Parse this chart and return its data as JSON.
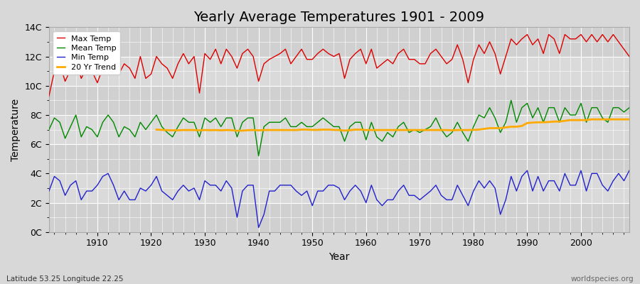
{
  "title": "Yearly Average Temperatures 1901 - 2009",
  "xlabel": "Year",
  "ylabel": "Temperature",
  "footnote_left": "Latitude 53.25 Longitude 22.25",
  "footnote_right": "worldspecies.org",
  "legend": [
    "Max Temp",
    "Mean Temp",
    "Min Temp",
    "20 Yr Trend"
  ],
  "colors": {
    "max": "#dd0000",
    "mean": "#008800",
    "min": "#2222cc",
    "trend": "#ffaa00"
  },
  "years": [
    1901,
    1902,
    1903,
    1904,
    1905,
    1906,
    1907,
    1908,
    1909,
    1910,
    1911,
    1912,
    1913,
    1914,
    1915,
    1916,
    1917,
    1918,
    1919,
    1920,
    1921,
    1922,
    1923,
    1924,
    1925,
    1926,
    1927,
    1928,
    1929,
    1930,
    1931,
    1932,
    1933,
    1934,
    1935,
    1936,
    1937,
    1938,
    1939,
    1940,
    1941,
    1942,
    1943,
    1944,
    1945,
    1946,
    1947,
    1948,
    1949,
    1950,
    1951,
    1952,
    1953,
    1954,
    1955,
    1956,
    1957,
    1958,
    1959,
    1960,
    1961,
    1962,
    1963,
    1964,
    1965,
    1966,
    1967,
    1968,
    1969,
    1970,
    1971,
    1972,
    1973,
    1974,
    1975,
    1976,
    1977,
    1978,
    1979,
    1980,
    1981,
    1982,
    1983,
    1984,
    1985,
    1986,
    1987,
    1988,
    1989,
    1990,
    1991,
    1992,
    1993,
    1994,
    1995,
    1996,
    1997,
    1998,
    1999,
    2000,
    2001,
    2002,
    2003,
    2004,
    2005,
    2006,
    2007,
    2008,
    2009
  ],
  "max_temp": [
    9.3,
    11.0,
    11.5,
    10.3,
    11.1,
    11.8,
    10.5,
    11.2,
    11.0,
    10.2,
    11.2,
    12.3,
    11.0,
    10.8,
    11.5,
    11.2,
    10.5,
    12.0,
    10.5,
    10.8,
    12.0,
    11.5,
    11.2,
    10.5,
    11.5,
    12.2,
    11.5,
    12.0,
    9.5,
    12.2,
    11.8,
    12.5,
    11.5,
    12.5,
    12.0,
    11.2,
    12.2,
    12.5,
    12.0,
    10.3,
    11.5,
    11.8,
    12.0,
    12.2,
    12.5,
    11.5,
    12.0,
    12.5,
    11.8,
    11.8,
    12.2,
    12.5,
    12.2,
    12.0,
    12.2,
    10.5,
    11.8,
    12.2,
    12.5,
    11.5,
    12.5,
    11.2,
    11.5,
    11.8,
    11.5,
    12.2,
    12.5,
    11.8,
    11.8,
    11.5,
    11.5,
    12.2,
    12.5,
    12.0,
    11.5,
    11.8,
    12.8,
    11.8,
    10.2,
    11.8,
    12.8,
    12.2,
    13.0,
    12.2,
    10.8,
    12.0,
    13.2,
    12.8,
    13.2,
    13.5,
    12.8,
    13.2,
    12.2,
    13.5,
    13.2,
    12.2,
    13.5,
    13.2,
    13.2,
    13.5,
    13.0,
    13.5,
    13.0,
    13.5,
    13.0,
    13.5,
    13.0,
    12.5,
    12.0
  ],
  "mean_temp": [
    7.0,
    7.8,
    7.5,
    6.4,
    7.2,
    8.0,
    6.5,
    7.2,
    7.0,
    6.5,
    7.5,
    8.0,
    7.5,
    6.5,
    7.2,
    7.0,
    6.5,
    7.5,
    7.0,
    7.5,
    8.0,
    7.2,
    6.8,
    6.5,
    7.2,
    7.8,
    7.5,
    7.5,
    6.5,
    7.8,
    7.5,
    7.8,
    7.2,
    7.8,
    7.8,
    6.5,
    7.5,
    7.8,
    7.8,
    5.2,
    7.2,
    7.5,
    7.5,
    7.5,
    7.8,
    7.2,
    7.2,
    7.5,
    7.2,
    7.2,
    7.5,
    7.8,
    7.5,
    7.2,
    7.2,
    6.2,
    7.2,
    7.5,
    7.5,
    6.3,
    7.5,
    6.5,
    6.2,
    6.8,
    6.5,
    7.2,
    7.5,
    6.8,
    7.0,
    6.8,
    7.0,
    7.2,
    7.8,
    7.0,
    6.5,
    6.8,
    7.5,
    6.8,
    6.2,
    7.2,
    8.0,
    7.8,
    8.5,
    7.8,
    6.8,
    7.5,
    9.0,
    7.5,
    8.5,
    8.8,
    7.8,
    8.5,
    7.5,
    8.5,
    8.5,
    7.5,
    8.5,
    8.0,
    8.0,
    8.8,
    7.5,
    8.5,
    8.5,
    7.8,
    7.5,
    8.5,
    8.5,
    8.2,
    8.5
  ],
  "min_temp": [
    2.8,
    3.8,
    3.5,
    2.5,
    3.2,
    3.5,
    2.2,
    2.8,
    2.8,
    3.2,
    3.8,
    4.0,
    3.2,
    2.2,
    2.8,
    2.2,
    2.2,
    3.0,
    2.8,
    3.2,
    3.8,
    2.8,
    2.5,
    2.2,
    2.8,
    3.2,
    2.8,
    3.0,
    2.2,
    3.5,
    3.2,
    3.2,
    2.8,
    3.5,
    3.0,
    1.0,
    2.8,
    3.2,
    3.2,
    0.3,
    1.2,
    2.8,
    2.8,
    3.2,
    3.2,
    3.2,
    2.8,
    2.5,
    2.8,
    1.8,
    2.8,
    2.8,
    3.2,
    3.2,
    3.0,
    2.2,
    2.8,
    3.2,
    2.8,
    2.0,
    3.2,
    2.2,
    1.8,
    2.2,
    2.2,
    2.8,
    3.2,
    2.5,
    2.5,
    2.2,
    2.5,
    2.8,
    3.2,
    2.5,
    2.2,
    2.2,
    3.2,
    2.5,
    1.8,
    2.8,
    3.5,
    3.0,
    3.5,
    3.0,
    1.2,
    2.2,
    3.8,
    2.8,
    3.8,
    4.2,
    2.8,
    3.8,
    2.8,
    3.5,
    3.5,
    2.8,
    4.0,
    3.2,
    3.2,
    4.2,
    2.8,
    4.0,
    4.0,
    3.2,
    2.8,
    3.5,
    4.0,
    3.5,
    4.2
  ],
  "trend_years": [
    1921,
    1922,
    1923,
    1924,
    1925,
    1926,
    1927,
    1928,
    1929,
    1930,
    1931,
    1932,
    1933,
    1934,
    1935,
    1936,
    1937,
    1938,
    1939,
    1940,
    1941,
    1942,
    1943,
    1944,
    1945,
    1946,
    1947,
    1948,
    1949,
    1950,
    1951,
    1952,
    1953,
    1954,
    1955,
    1956,
    1957,
    1958,
    1959,
    1960,
    1961,
    1962,
    1963,
    1964,
    1965,
    1966,
    1967,
    1968,
    1969,
    1970,
    1971,
    1972,
    1973,
    1974,
    1975,
    1976,
    1977,
    1978,
    1979,
    1980,
    1981,
    1982,
    1983,
    1984,
    1985,
    1986,
    1987,
    1988,
    1989,
    1990,
    1991,
    1992,
    1993,
    1994,
    1995,
    1996,
    1997,
    1998,
    1999,
    2000,
    2001,
    2002,
    2003,
    2004,
    2005,
    2006,
    2007,
    2008,
    2009
  ],
  "trend_vals": [
    7.0,
    6.98,
    6.96,
    6.95,
    6.95,
    6.97,
    6.97,
    6.97,
    6.95,
    6.97,
    6.96,
    6.97,
    6.95,
    6.97,
    6.96,
    6.92,
    6.93,
    6.96,
    6.97,
    6.95,
    6.97,
    6.97,
    6.97,
    6.97,
    6.97,
    6.97,
    6.97,
    7.0,
    7.0,
    6.98,
    6.98,
    7.0,
    7.0,
    6.98,
    6.97,
    6.93,
    6.96,
    7.0,
    7.0,
    6.97,
    6.97,
    6.97,
    6.97,
    6.97,
    6.97,
    6.97,
    6.97,
    6.97,
    6.97,
    6.97,
    6.97,
    6.97,
    6.97,
    6.97,
    6.97,
    6.95,
    6.97,
    6.97,
    6.97,
    6.98,
    7.0,
    7.05,
    7.1,
    7.1,
    7.1,
    7.15,
    7.2,
    7.2,
    7.25,
    7.45,
    7.48,
    7.5,
    7.5,
    7.52,
    7.55,
    7.55,
    7.6,
    7.65,
    7.65,
    7.65,
    7.65,
    7.7,
    7.7,
    7.7,
    7.7,
    7.7,
    7.7,
    7.7,
    7.7
  ],
  "ylim": [
    0,
    14
  ],
  "yticks": [
    0,
    2,
    4,
    6,
    8,
    10,
    12,
    14
  ],
  "ytick_labels": [
    "0C",
    "2C",
    "4C",
    "6C",
    "8C",
    "10C",
    "12C",
    "14C"
  ],
  "xlim": [
    1901,
    2009
  ],
  "xticks": [
    1910,
    1920,
    1930,
    1940,
    1950,
    1960,
    1970,
    1980,
    1990,
    2000
  ],
  "bg_color": "#d8d8d8",
  "plot_bg_color": "#d8d8d8",
  "grid_color": "#ffffff",
  "title_fontsize": 14,
  "axis_label_fontsize": 10,
  "tick_fontsize": 9,
  "line_width": 1.0
}
